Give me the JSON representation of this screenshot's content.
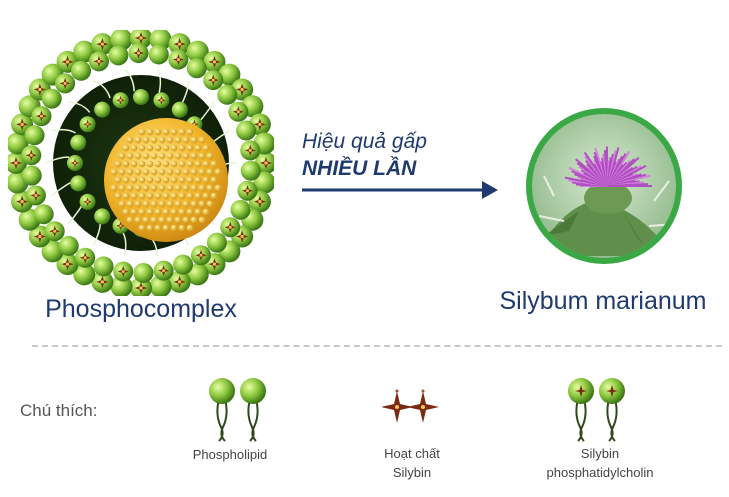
{
  "diagram": {
    "left_label": "Phosphocomplex",
    "right_label": "Silybum marianum",
    "arrow_text_line1": "Hiệu quả gấp",
    "arrow_text_line2": "NHIỀU LẦN",
    "colors": {
      "text_navy": "#1f3a6e",
      "phospholipid_green": "#8cc63f",
      "silybin_brown": "#7a2a10",
      "silybin_gold": "#f2c14e",
      "core_yellow": "#f0b429",
      "plant_ring": "#3aa845"
    }
  },
  "legend": {
    "title": "Chú thích:",
    "items": [
      {
        "icon": "phospholipid-icon",
        "label_line1": "Phospholipid",
        "label_line2": ""
      },
      {
        "icon": "silybin-icon",
        "label_line1": "Hoạt chất",
        "label_line2": "Silybin"
      },
      {
        "icon": "silybin-phosphatidylcholin-icon",
        "label_line1": "Silybin",
        "label_line2": "phosphatidylcholin"
      }
    ]
  }
}
